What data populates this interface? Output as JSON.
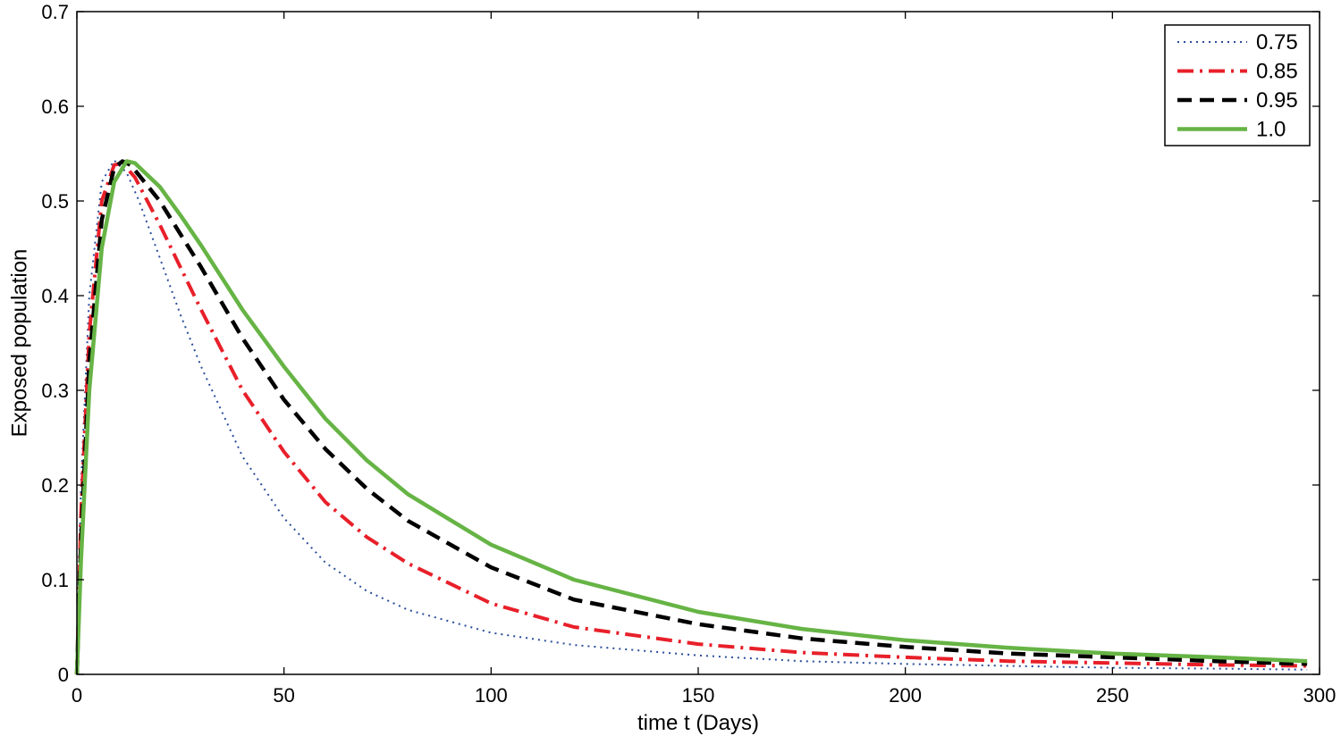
{
  "chart_data": {
    "type": "line",
    "title": "",
    "xlabel": "time t (Days)",
    "ylabel": "Exposed population",
    "xlim": [
      0,
      300
    ],
    "ylim": [
      0,
      0.7
    ],
    "xticks": [
      0,
      50,
      100,
      150,
      200,
      250,
      300
    ],
    "yticks": [
      0,
      0.1,
      0.2,
      0.3,
      0.4,
      0.5,
      0.6,
      0.7
    ],
    "xtick_labels": [
      "0",
      "50",
      "100",
      "150",
      "200",
      "250",
      "300"
    ],
    "ytick_labels": [
      "0",
      "0.1",
      "0.2",
      "0.3",
      "0.4",
      "0.5",
      "0.6",
      "0.7"
    ],
    "grid": false,
    "legend": "top-right",
    "series": [
      {
        "name": "0.75",
        "color": "#2b4c9b",
        "style": "dotted",
        "x": [
          0,
          1,
          3,
          6,
          9,
          12,
          15,
          20,
          25,
          30,
          40,
          50,
          60,
          70,
          80,
          100,
          120,
          150,
          175,
          200,
          225,
          250,
          275,
          297
        ],
        "y": [
          0,
          0.2,
          0.4,
          0.52,
          0.543,
          0.53,
          0.5,
          0.44,
          0.38,
          0.325,
          0.23,
          0.165,
          0.118,
          0.088,
          0.068,
          0.044,
          0.031,
          0.02,
          0.014,
          0.011,
          0.009,
          0.007,
          0.006,
          0.005
        ]
      },
      {
        "name": "0.85",
        "color": "#e8202a",
        "style": "dashdot",
        "x": [
          0,
          1,
          3,
          6,
          9,
          11,
          14,
          20,
          25,
          30,
          40,
          50,
          60,
          70,
          80,
          100,
          120,
          150,
          175,
          200,
          225,
          250,
          275,
          297
        ],
        "y": [
          0,
          0.17,
          0.36,
          0.5,
          0.538,
          0.54,
          0.525,
          0.475,
          0.43,
          0.385,
          0.3,
          0.235,
          0.182,
          0.145,
          0.117,
          0.075,
          0.05,
          0.032,
          0.023,
          0.018,
          0.014,
          0.012,
          0.01,
          0.009
        ]
      },
      {
        "name": "0.95",
        "color": "#000000",
        "style": "dashed",
        "x": [
          0,
          1,
          3,
          6,
          9,
          11,
          13,
          20,
          25,
          30,
          40,
          50,
          60,
          70,
          80,
          100,
          120,
          150,
          175,
          200,
          225,
          250,
          275,
          297
        ],
        "y": [
          0,
          0.14,
          0.33,
          0.48,
          0.535,
          0.542,
          0.538,
          0.5,
          0.465,
          0.43,
          0.355,
          0.29,
          0.238,
          0.196,
          0.162,
          0.113,
          0.079,
          0.053,
          0.038,
          0.029,
          0.022,
          0.018,
          0.014,
          0.011
        ]
      },
      {
        "name": "1.0",
        "color": "#66b445",
        "style": "solid",
        "x": [
          0,
          1,
          3,
          6,
          9,
          12,
          14,
          20,
          25,
          30,
          40,
          50,
          60,
          70,
          80,
          100,
          120,
          150,
          175,
          200,
          225,
          250,
          275,
          297
        ],
        "y": [
          0,
          0.12,
          0.3,
          0.45,
          0.52,
          0.542,
          0.54,
          0.515,
          0.485,
          0.453,
          0.385,
          0.325,
          0.27,
          0.226,
          0.19,
          0.137,
          0.1,
          0.066,
          0.048,
          0.036,
          0.028,
          0.022,
          0.018,
          0.014
        ]
      }
    ]
  }
}
